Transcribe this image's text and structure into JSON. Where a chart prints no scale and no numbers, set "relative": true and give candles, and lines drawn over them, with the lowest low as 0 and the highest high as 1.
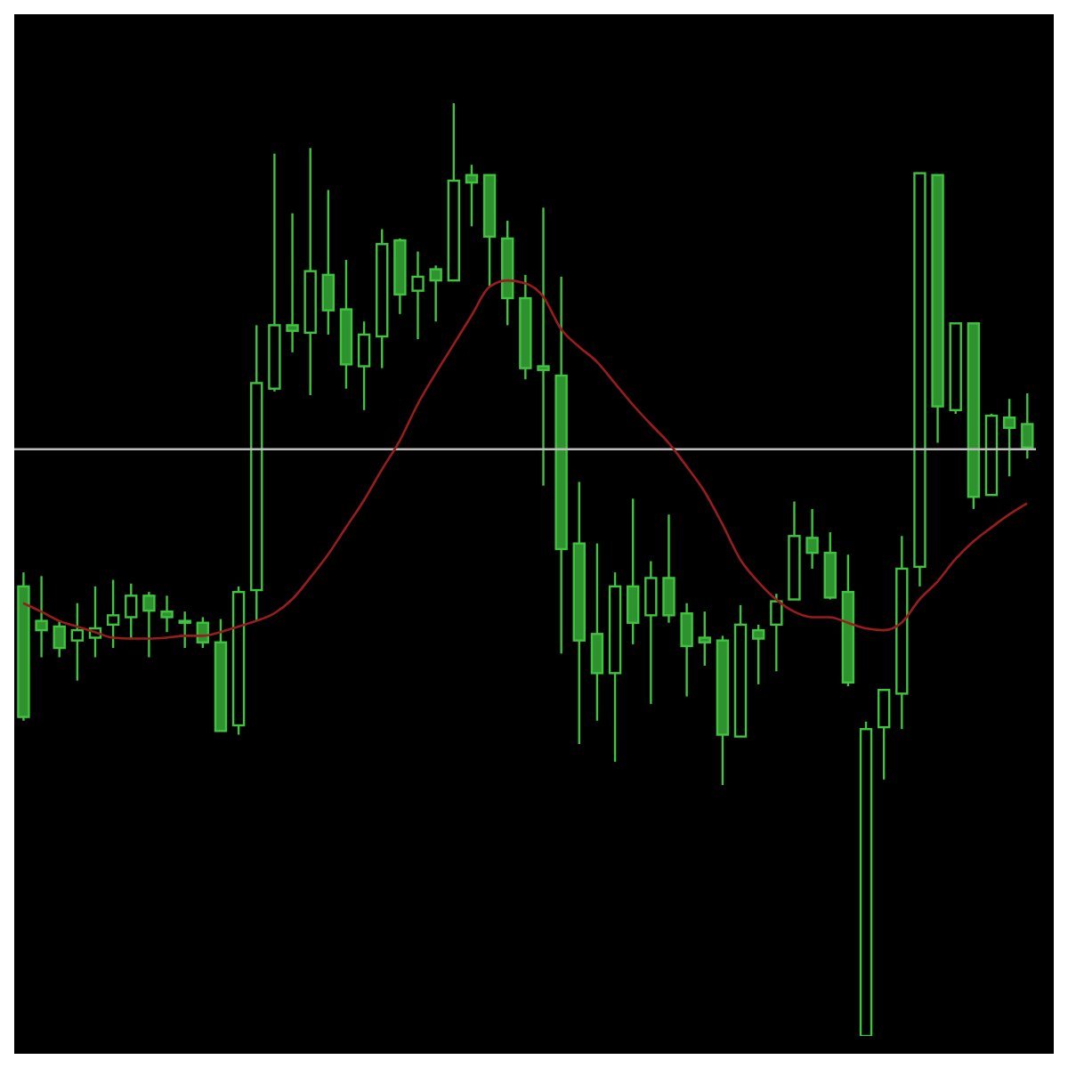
{
  "chart_data": {
    "type": "candlestick",
    "relative": true,
    "tick_labels": false,
    "grid": false,
    "legend": false,
    "categories": [
      null,
      null,
      null,
      null,
      null,
      null,
      null,
      null,
      null,
      null,
      null,
      null,
      null,
      null,
      null,
      null,
      null,
      null,
      null,
      null,
      null,
      null,
      null,
      null,
      null,
      null,
      null,
      null,
      null,
      null,
      null,
      null,
      null,
      null,
      null,
      null,
      null,
      null,
      null,
      null,
      null,
      null,
      null,
      null,
      null,
      null,
      null,
      null,
      null,
      null,
      null,
      null,
      null,
      null,
      null,
      null,
      null
    ],
    "series": [
      {
        "type": "line",
        "color": "#9b1c1c",
        "values": [
          0.464,
          0.455,
          0.445,
          0.439,
          0.433,
          0.427,
          0.426,
          0.426,
          0.427,
          0.429,
          0.429,
          0.433,
          0.439,
          0.445,
          0.453,
          0.468,
          0.491,
          0.516,
          0.545,
          0.574,
          0.607,
          0.638,
          0.677,
          0.71,
          0.741,
          0.772,
          0.803,
          0.81,
          0.807,
          0.793,
          0.758,
          0.739,
          0.723,
          0.7,
          0.677,
          0.656,
          0.636,
          0.611,
          0.584,
          0.549,
          0.511,
          0.487,
          0.468,
          0.455,
          0.449,
          0.449,
          0.443,
          0.437,
          0.435,
          0.443,
          0.468,
          0.487,
          0.511,
          0.53,
          0.545,
          0.559,
          0.571
        ]
      },
      {
        "color": "#3ec43e",
        "ohlc": [
          [
            0.482,
            0.497,
            0.338,
            0.342
          ],
          [
            0.445,
            0.493,
            0.406,
            0.435
          ],
          [
            0.439,
            0.445,
            0.406,
            0.416
          ],
          [
            0.424,
            0.464,
            0.381,
            0.435
          ],
          [
            0.427,
            0.482,
            0.406,
            0.437
          ],
          [
            0.441,
            0.489,
            0.416,
            0.451
          ],
          [
            0.449,
            0.485,
            0.426,
            0.472
          ],
          [
            0.472,
            0.476,
            0.406,
            0.456
          ],
          [
            0.455,
            0.472,
            0.433,
            0.449
          ],
          [
            0.445,
            0.455,
            0.416,
            0.443
          ],
          [
            0.443,
            0.449,
            0.416,
            0.422
          ],
          [
            0.422,
            0.447,
            0.327,
            0.327
          ],
          [
            0.333,
            0.482,
            0.323,
            0.476
          ],
          [
            0.478,
            0.762,
            0.445,
            0.7
          ],
          [
            0.694,
            0.946,
            0.691,
            0.762
          ],
          [
            0.762,
            0.882,
            0.733,
            0.756
          ],
          [
            0.754,
            0.952,
            0.687,
            0.82
          ],
          [
            0.816,
            0.907,
            0.752,
            0.778
          ],
          [
            0.779,
            0.832,
            0.694,
            0.72
          ],
          [
            0.718,
            0.766,
            0.671,
            0.752
          ],
          [
            0.75,
            0.865,
            0.716,
            0.849
          ],
          [
            0.853,
            0.855,
            0.774,
            0.795
          ],
          [
            0.799,
            0.841,
            0.747,
            0.814
          ],
          [
            0.822,
            0.826,
            0.766,
            0.81
          ],
          [
            0.81,
            1,
            0.81,
            0.917
          ],
          [
            0.923,
            0.934,
            0.868,
            0.915
          ],
          [
            0.923,
            0.923,
            0.803,
            0.857
          ],
          [
            0.855,
            0.874,
            0.762,
            0.791
          ],
          [
            0.791,
            0.816,
            0.704,
            0.716
          ],
          [
            0.718,
            0.888,
            0.59,
            0.714
          ],
          [
            0.708,
            0.814,
            0.41,
            0.522
          ],
          [
            0.528,
            0.594,
            0.313,
            0.424
          ],
          [
            0.431,
            0.528,
            0.338,
            0.389
          ],
          [
            0.389,
            0.497,
            0.294,
            0.482
          ],
          [
            0.482,
            0.576,
            0.42,
            0.443
          ],
          [
            0.451,
            0.509,
            0.356,
            0.491
          ],
          [
            0.491,
            0.559,
            0.443,
            0.451
          ],
          [
            0.453,
            0.464,
            0.364,
            0.418
          ],
          [
            0.427,
            0.455,
            0.397,
            0.422
          ],
          [
            0.424,
            0.429,
            0.269,
            0.323
          ],
          [
            0.321,
            0.462,
            0.321,
            0.441
          ],
          [
            0.435,
            0.441,
            0.377,
            0.426
          ],
          [
            0.441,
            0.474,
            0.391,
            0.466
          ],
          [
            0.468,
            0.573,
            0.468,
            0.536
          ],
          [
            0.534,
            0.565,
            0.501,
            0.518
          ],
          [
            0.518,
            0.54,
            0.468,
            0.47
          ],
          [
            0.476,
            0.516,
            0.375,
            0.379
          ],
          [
            0,
            0.337,
            0,
            0.329
          ],
          [
            0.331,
            0.371,
            0.275,
            0.371
          ],
          [
            0.367,
            0.536,
            0.329,
            0.501
          ],
          [
            0.503,
            0.925,
            0.482,
            0.925
          ],
          [
            0.923,
            0.923,
            0.636,
            0.675
          ],
          [
            0.671,
            0.764,
            0.667,
            0.764
          ],
          [
            0.764,
            0.764,
            0.565,
            0.578
          ],
          [
            0.58,
            0.667,
            0.58,
            0.665
          ],
          [
            0.663,
            0.683,
            0.6,
            0.652
          ],
          [
            0.656,
            0.689,
            0.619,
            0.631
          ]
        ]
      }
    ],
    "ref_lines": [
      {
        "axis": "y",
        "value": 0.629,
        "color": "#bdbdbd"
      }
    ]
  }
}
